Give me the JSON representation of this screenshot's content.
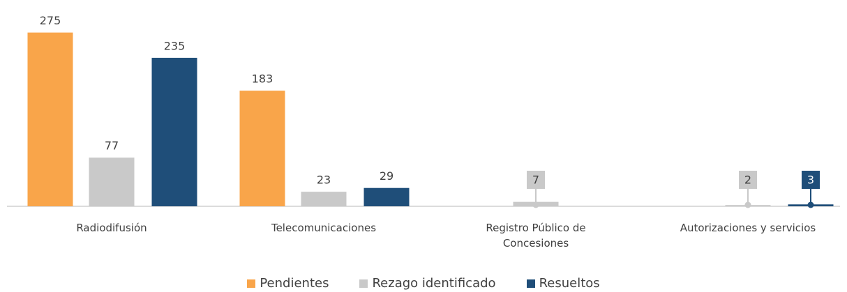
{
  "chart_data": {
    "type": "bar",
    "categories": [
      "Radiodifusión",
      "Telecomunicaciones",
      "Registro Público de Concesiones",
      "Autorizaciones y servicios"
    ],
    "series": [
      {
        "name": "Pendientes",
        "color": "#F9A54A",
        "values": [
          275,
          183,
          null,
          null
        ]
      },
      {
        "name": "Rezago identificado",
        "color": "#C9C9C9",
        "values": [
          77,
          23,
          7,
          2
        ]
      },
      {
        "name": "Resueltos",
        "color": "#1F4E79",
        "values": [
          235,
          29,
          null,
          3
        ]
      }
    ],
    "ylim": [
      0,
      300
    ]
  }
}
